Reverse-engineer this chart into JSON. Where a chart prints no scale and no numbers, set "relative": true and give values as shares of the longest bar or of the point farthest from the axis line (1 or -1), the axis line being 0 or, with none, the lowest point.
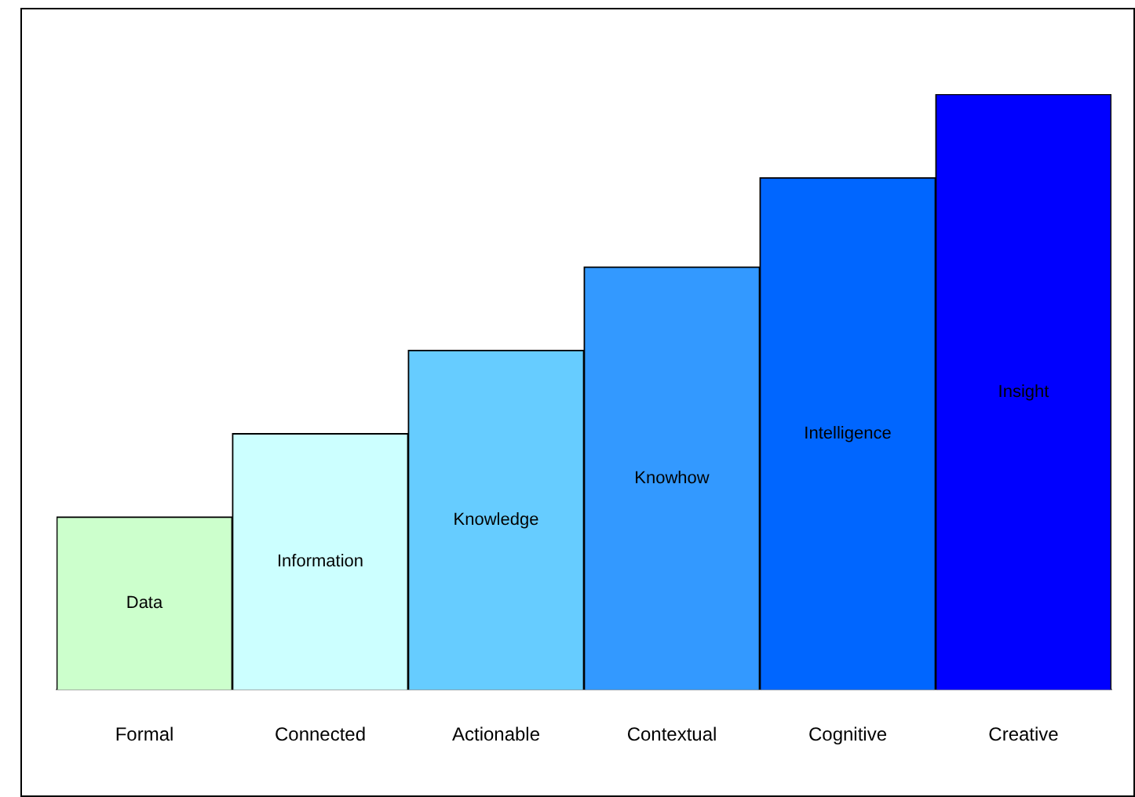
{
  "chart_data": {
    "type": "bar",
    "relative": true,
    "categories": [
      "Formal",
      "Connected",
      "Actionable",
      "Contextual",
      "Cognitive",
      "Creative"
    ],
    "values": [
      0.29,
      0.43,
      0.57,
      0.71,
      0.86,
      1
    ],
    "colors": [
      "#ccffcc",
      "#ccffff",
      "#66ccff",
      "#3399ff",
      "#0066ff",
      "#0000ff"
    ],
    "annotations": [
      "Data",
      "Information",
      "Knowledge",
      "Knowhow",
      "Intelligence",
      "Insight"
    ],
    "grid": false,
    "legend": false
  }
}
